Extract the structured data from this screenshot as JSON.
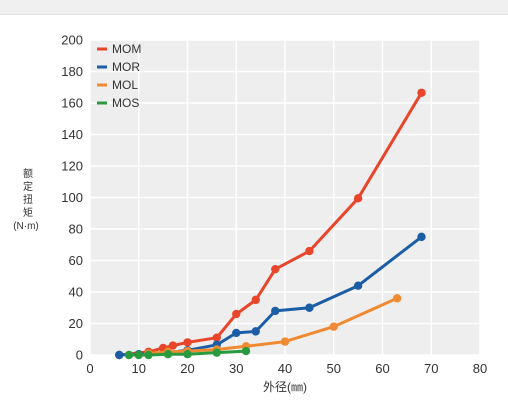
{
  "chart_data": {
    "type": "line",
    "title": "",
    "xlabel": "外径(㎜)",
    "ylabel_chars": [
      "额",
      "定",
      "扭",
      "矩"
    ],
    "ylabel_unit": "(N·m)",
    "xlim": [
      0,
      80
    ],
    "ylim": [
      0,
      200
    ],
    "x_ticks": [
      0,
      10,
      20,
      30,
      40,
      50,
      60,
      70,
      80
    ],
    "y_ticks": [
      0,
      20,
      40,
      60,
      80,
      100,
      120,
      140,
      160,
      180,
      200
    ],
    "grid": true,
    "legend_position": "top-left",
    "series": [
      {
        "name": "MOM",
        "color": "#e8452a",
        "points": [
          [
            6,
            0
          ],
          [
            12,
            2
          ],
          [
            15,
            4.5
          ],
          [
            17,
            6
          ],
          [
            20,
            8
          ],
          [
            26,
            11
          ],
          [
            30,
            26
          ],
          [
            34,
            35
          ],
          [
            38,
            54.5
          ],
          [
            45,
            66
          ],
          [
            55,
            99.5
          ],
          [
            68,
            166.5
          ]
        ]
      },
      {
        "name": "MOR",
        "color": "#1b5ea6",
        "points": [
          [
            6,
            0
          ],
          [
            10,
            0.5
          ],
          [
            16,
            1.5
          ],
          [
            20,
            3
          ],
          [
            26,
            6.5
          ],
          [
            30,
            14
          ],
          [
            34,
            15
          ],
          [
            38,
            28
          ],
          [
            45,
            30
          ],
          [
            55,
            44
          ],
          [
            68,
            75
          ]
        ]
      },
      {
        "name": "MOL",
        "color": "#f08a32",
        "points": [
          [
            12,
            1
          ],
          [
            16,
            2
          ],
          [
            20,
            2.5
          ],
          [
            26,
            3.5
          ],
          [
            32,
            5.5
          ],
          [
            40,
            8.5
          ],
          [
            50,
            18
          ],
          [
            63,
            36
          ]
        ]
      },
      {
        "name": "MOS",
        "color": "#2a9a3e",
        "points": [
          [
            8,
            0
          ],
          [
            10,
            0
          ],
          [
            12,
            0
          ],
          [
            16,
            0.5
          ],
          [
            20,
            0.5
          ],
          [
            26,
            1.5
          ],
          [
            32,
            2.5
          ]
        ]
      }
    ]
  }
}
